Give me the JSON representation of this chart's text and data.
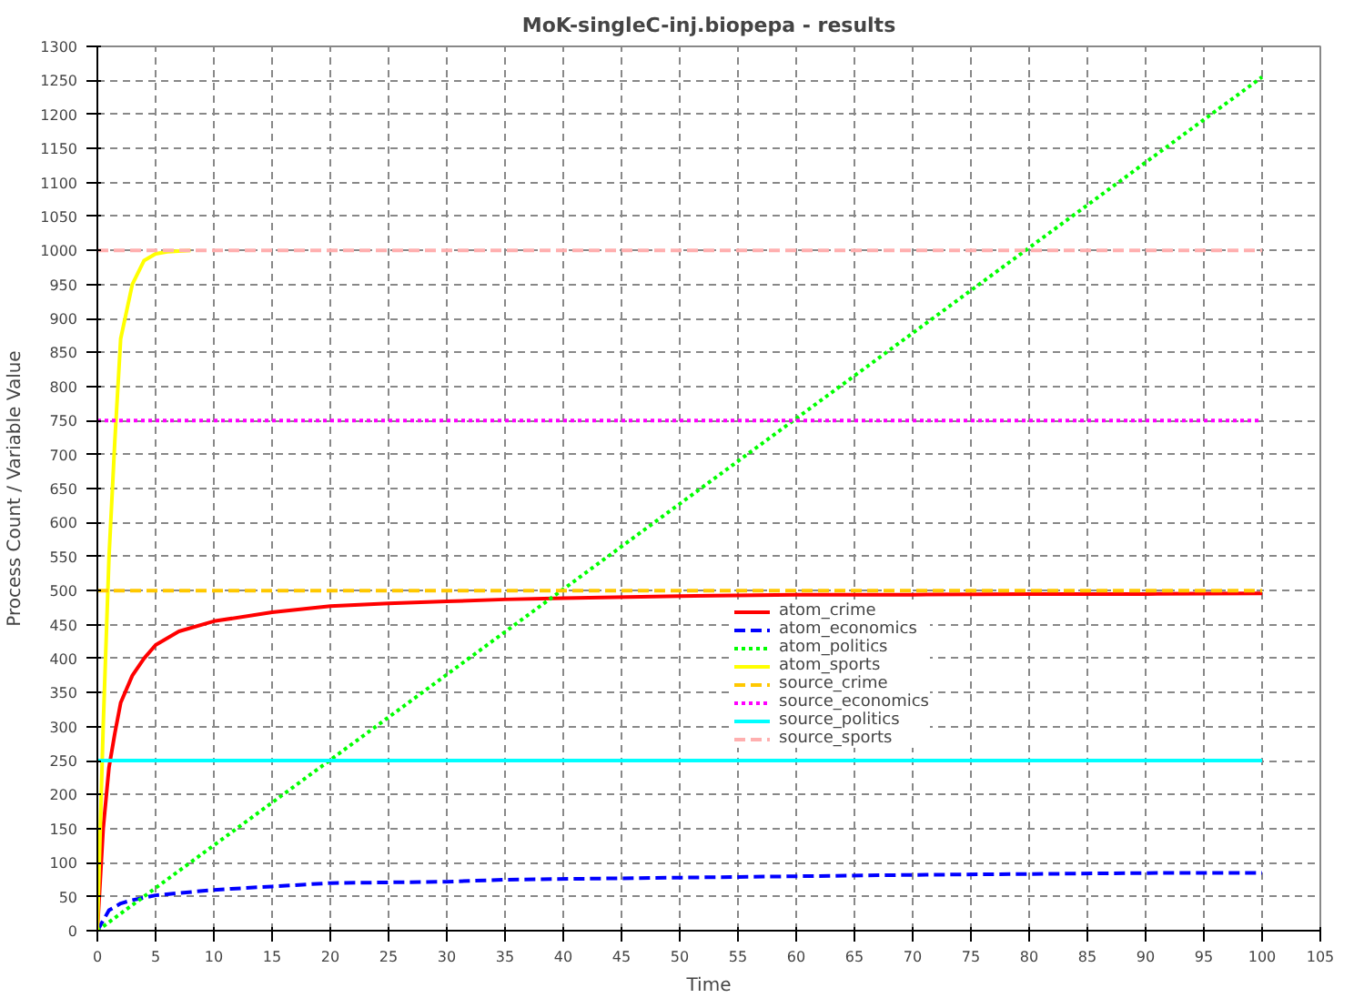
{
  "chart_data": {
    "type": "line",
    "title": "MoK-singleC-inj.biopepa - results",
    "xlabel": "Time",
    "ylabel": "Process Count / Variable Value",
    "xlim": [
      0,
      105
    ],
    "ylim": [
      0,
      1300
    ],
    "xticks": [
      0,
      5,
      10,
      15,
      20,
      25,
      30,
      35,
      40,
      45,
      50,
      55,
      60,
      65,
      70,
      75,
      80,
      85,
      90,
      95,
      100,
      105
    ],
    "yticks": [
      0,
      50,
      100,
      150,
      200,
      250,
      300,
      350,
      400,
      450,
      500,
      550,
      600,
      650,
      700,
      750,
      800,
      850,
      900,
      950,
      1000,
      1050,
      1100,
      1150,
      1200,
      1250,
      1300
    ],
    "grid": true,
    "legend": "right",
    "marker": "none",
    "series": [
      {
        "name": "atom_crime",
        "color": "#ff0000",
        "line_style": "solid",
        "x": [
          0,
          0.5,
          1,
          1.5,
          2,
          3,
          4,
          5,
          7,
          10,
          15,
          20,
          25,
          30,
          35,
          40,
          50,
          60,
          70,
          80,
          90,
          100
        ],
        "values": [
          0,
          150,
          240,
          290,
          335,
          375,
          400,
          420,
          440,
          455,
          468,
          477,
          481,
          484,
          487,
          489,
          492,
          494,
          494,
          495,
          495,
          496
        ]
      },
      {
        "name": "atom_economics",
        "color": "#0000ff",
        "line_style": "dashed",
        "x": [
          0,
          0.5,
          1,
          2,
          3,
          5,
          10,
          15,
          20,
          30,
          35,
          45,
          55,
          70,
          92,
          100
        ],
        "values": [
          0,
          15,
          30,
          40,
          45,
          52,
          60,
          65,
          70,
          72,
          75,
          77,
          79,
          82,
          85,
          85
        ]
      },
      {
        "name": "atom_politics",
        "color": "#00ff00",
        "line_style": "dotted",
        "x": [
          0,
          100
        ],
        "values": [
          0,
          1255
        ]
      },
      {
        "name": "atom_sports",
        "color": "#ffff00",
        "line_style": "solid",
        "x": [
          0,
          0.5,
          1,
          1.5,
          2,
          3,
          4,
          5,
          6,
          8
        ],
        "values": [
          0,
          300,
          550,
          720,
          870,
          950,
          985,
          995,
          998,
          1000
        ]
      },
      {
        "name": "source_crime",
        "color": "#ffc800",
        "line_style": "dashed",
        "x": [
          0,
          100
        ],
        "values": [
          500,
          500
        ]
      },
      {
        "name": "source_economics",
        "color": "#ff00ff",
        "line_style": "dotted",
        "x": [
          0,
          100
        ],
        "values": [
          750,
          750
        ]
      },
      {
        "name": "source_politics",
        "color": "#00ffff",
        "line_style": "solid",
        "x": [
          0,
          100
        ],
        "values": [
          250,
          250
        ]
      },
      {
        "name": "source_sports",
        "color": "#ffafaf",
        "line_style": "dashed",
        "x": [
          0,
          100
        ],
        "values": [
          1000,
          1000
        ]
      }
    ]
  }
}
